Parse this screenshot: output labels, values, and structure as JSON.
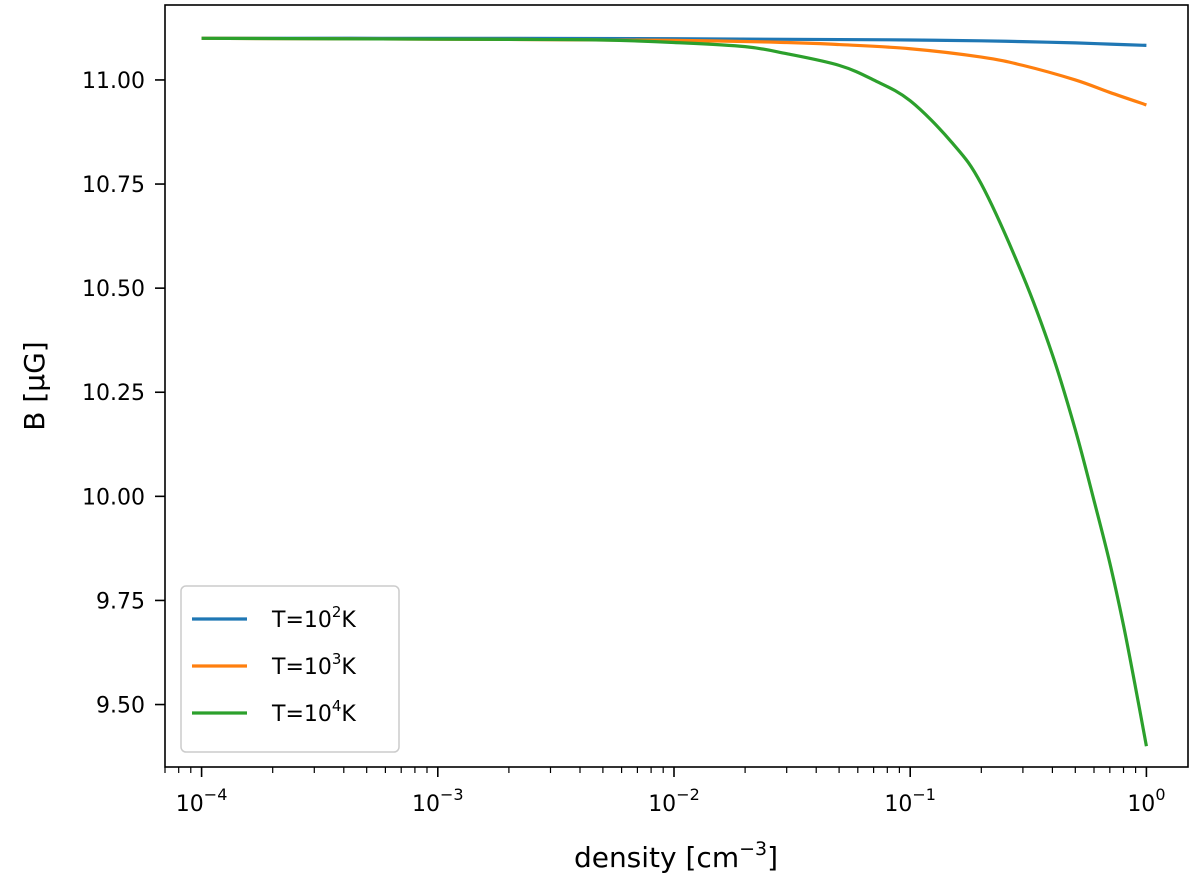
{
  "chart_data": {
    "type": "line",
    "xscale": "log",
    "xlabel": "density [cm",
    "xlabel_sup": "−3",
    "xlabel_end": "]",
    "ylabel": "B [μG]",
    "xlim": [
      7e-05,
      1.5
    ],
    "ylim": [
      9.35,
      11.18
    ],
    "x_ticks": [
      {
        "value": 0.0001,
        "base": "10",
        "exp": "−4"
      },
      {
        "value": 0.001,
        "base": "10",
        "exp": "−3"
      },
      {
        "value": 0.01,
        "base": "10",
        "exp": "−2"
      },
      {
        "value": 0.1,
        "base": "10",
        "exp": "−1"
      },
      {
        "value": 1,
        "base": "10",
        "exp": "0"
      }
    ],
    "y_ticks": [
      {
        "value": 11.0,
        "label": "11.00"
      },
      {
        "value": 10.75,
        "label": "10.75"
      },
      {
        "value": 10.5,
        "label": "10.50"
      },
      {
        "value": 10.25,
        "label": "10.25"
      },
      {
        "value": 10.0,
        "label": "10.00"
      },
      {
        "value": 9.75,
        "label": "9.75"
      },
      {
        "value": 9.5,
        "label": "9.50"
      }
    ],
    "grid": false,
    "legend_position": "lower-left",
    "series": [
      {
        "name": "T=10²K",
        "label_prefix": "T=10",
        "label_sup": "2",
        "label_suffix": "K",
        "color": "#1f77b4",
        "x": [
          0.0001,
          0.001,
          0.01,
          0.05,
          0.1,
          0.2,
          0.3,
          0.5,
          0.7,
          1.0
        ],
        "y": [
          11.1,
          11.1,
          11.099,
          11.097,
          11.096,
          11.094,
          11.092,
          11.089,
          11.086,
          11.083
        ]
      },
      {
        "name": "T=10³K",
        "label_prefix": "T=10",
        "label_sup": "3",
        "label_suffix": "K",
        "color": "#ff7f0e",
        "x": [
          0.0001,
          0.001,
          0.01,
          0.03,
          0.05,
          0.1,
          0.2,
          0.3,
          0.5,
          0.7,
          1.0
        ],
        "y": [
          11.1,
          11.098,
          11.095,
          11.09,
          11.085,
          11.075,
          11.055,
          11.035,
          11.0,
          10.97,
          10.94
        ]
      },
      {
        "name": "T=10⁴K",
        "label_prefix": "T=10",
        "label_sup": "4",
        "label_suffix": "K",
        "color": "#2ca02c",
        "x": [
          0.0001,
          0.001,
          0.003,
          0.005,
          0.01,
          0.02,
          0.03,
          0.05,
          0.07,
          0.1,
          0.15,
          0.2,
          0.3,
          0.4,
          0.5,
          0.6,
          0.7,
          0.8,
          0.9,
          1.0
        ],
        "y": [
          11.1,
          11.098,
          11.097,
          11.096,
          11.09,
          11.08,
          11.063,
          11.035,
          11.0,
          10.95,
          10.85,
          10.75,
          10.53,
          10.34,
          10.16,
          9.99,
          9.84,
          9.69,
          9.54,
          9.4
        ]
      }
    ]
  }
}
